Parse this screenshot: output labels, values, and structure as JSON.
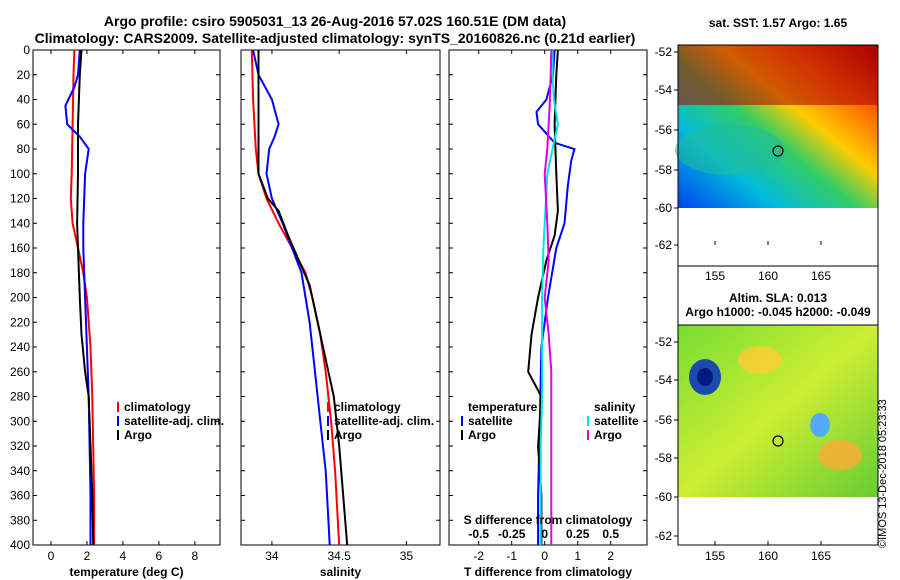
{
  "header": {
    "title_line1": "Argo profile: csiro 5905031_13 26-Aug-2016 57.02S 160.51E (DM data)",
    "title_line2": "Climatology: CARS2009. Satellite-adjusted climatology: synTS_20160826.nc (0.21d earlier)"
  },
  "colors": {
    "climatology": "#ff0000",
    "satellite": "#0000ff",
    "argo": "#000000",
    "cyan": "#00e5e5",
    "magenta": "#e000e0"
  },
  "depth_axis": {
    "ticks": [
      0,
      20,
      40,
      60,
      80,
      100,
      120,
      140,
      160,
      180,
      200,
      220,
      240,
      260,
      280,
      300,
      320,
      340,
      360,
      380,
      400
    ]
  },
  "chart_data": [
    {
      "type": "line",
      "id": "temperature",
      "xlabel": "temperature (deg C)",
      "ylabel": "",
      "xlim": [
        -1,
        9.4
      ],
      "ylim": [
        0,
        400
      ],
      "x_ticks": [
        0,
        2,
        4,
        6,
        8
      ],
      "legend": {
        "items": [
          "climatology",
          "satellite-adj. clim.",
          "Argo"
        ]
      },
      "series": [
        {
          "name": "climatology",
          "color": "red",
          "points": [
            [
              1.3,
              0
            ],
            [
              1.25,
              20
            ],
            [
              1.2,
              60
            ],
            [
              1.15,
              100
            ],
            [
              1.1,
              120
            ],
            [
              1.2,
              140
            ],
            [
              1.5,
              160
            ],
            [
              1.8,
              180
            ],
            [
              2.0,
              200
            ],
            [
              2.1,
              220
            ],
            [
              2.2,
              240
            ],
            [
              2.3,
              280
            ],
            [
              2.35,
              320
            ],
            [
              2.4,
              360
            ],
            [
              2.4,
              400
            ]
          ]
        },
        {
          "name": "satellite-adj. clim.",
          "color": "blue",
          "points": [
            [
              1.6,
              0
            ],
            [
              1.5,
              20
            ],
            [
              1.3,
              30
            ],
            [
              0.8,
              45
            ],
            [
              0.9,
              60
            ],
            [
              1.6,
              70
            ],
            [
              2.1,
              80
            ],
            [
              2.0,
              90
            ],
            [
              1.9,
              100
            ],
            [
              1.8,
              140
            ],
            [
              1.8,
              160
            ],
            [
              1.9,
              200
            ],
            [
              2.0,
              240
            ],
            [
              2.1,
              280
            ],
            [
              2.15,
              320
            ],
            [
              2.2,
              360
            ],
            [
              2.2,
              400
            ]
          ]
        },
        {
          "name": "Argo",
          "color": "black",
          "points": [
            [
              1.7,
              0
            ],
            [
              1.6,
              20
            ],
            [
              1.5,
              60
            ],
            [
              1.5,
              100
            ],
            [
              1.45,
              140
            ],
            [
              1.55,
              180
            ],
            [
              1.6,
              200
            ],
            [
              1.7,
              230
            ],
            [
              1.9,
              260
            ],
            [
              2.1,
              280
            ],
            [
              2.2,
              320
            ],
            [
              2.3,
              360
            ],
            [
              2.35,
              400
            ]
          ]
        }
      ]
    },
    {
      "type": "line",
      "id": "salinity",
      "xlabel": "salinity",
      "ylabel": "",
      "xlim": [
        33.77,
        35.25
      ],
      "x_ticks": [
        34,
        34.5,
        35
      ],
      "legend": {
        "items": [
          "climatology",
          "satellite-adj. clim.",
          "Argo"
        ]
      },
      "series": [
        {
          "name": "climatology",
          "color": "red",
          "points": [
            [
              33.85,
              0
            ],
            [
              33.86,
              40
            ],
            [
              33.88,
              80
            ],
            [
              33.9,
              100
            ],
            [
              33.96,
              120
            ],
            [
              34.05,
              140
            ],
            [
              34.15,
              160
            ],
            [
              34.25,
              180
            ],
            [
              34.3,
              200
            ],
            [
              34.36,
              230
            ],
            [
              34.4,
              260
            ],
            [
              34.44,
              300
            ],
            [
              34.47,
              340
            ],
            [
              34.49,
              380
            ],
            [
              34.5,
              400
            ]
          ]
        },
        {
          "name": "satellite-adj. clim.",
          "color": "blue",
          "points": [
            [
              33.86,
              0
            ],
            [
              33.9,
              20
            ],
            [
              34.0,
              40
            ],
            [
              34.05,
              60
            ],
            [
              34.02,
              70
            ],
            [
              33.98,
              80
            ],
            [
              33.96,
              100
            ],
            [
              34.0,
              120
            ],
            [
              34.08,
              140
            ],
            [
              34.15,
              160
            ],
            [
              34.22,
              180
            ],
            [
              34.28,
              220
            ],
            [
              34.32,
              260
            ],
            [
              34.36,
              300
            ],
            [
              34.4,
              340
            ],
            [
              34.42,
              380
            ],
            [
              34.43,
              400
            ]
          ]
        },
        {
          "name": "Argo",
          "color": "black",
          "points": [
            [
              33.9,
              0
            ],
            [
              33.9,
              40
            ],
            [
              33.9,
              80
            ],
            [
              33.9,
              100
            ],
            [
              33.97,
              120
            ],
            [
              34.05,
              130
            ],
            [
              34.12,
              150
            ],
            [
              34.2,
              170
            ],
            [
              34.28,
              190
            ],
            [
              34.32,
              210
            ],
            [
              34.38,
              240
            ],
            [
              34.42,
              260
            ],
            [
              34.46,
              280
            ],
            [
              34.5,
              320
            ],
            [
              34.53,
              360
            ],
            [
              34.56,
              400
            ]
          ]
        }
      ]
    },
    {
      "type": "line",
      "id": "differences",
      "xlabel": "T difference from climatology",
      "ylabel": "",
      "xlim": [
        -2.9,
        3.1
      ],
      "x_ticks": [
        -2,
        -1,
        0,
        1,
        2
      ],
      "top_axis": {
        "label": "S difference from climatology",
        "ticks": [
          "-0.5",
          "-0.25",
          "0",
          "0.25",
          "0.5"
        ],
        "values": [
          -0.5,
          -0.25,
          0,
          0.25,
          0.5
        ]
      },
      "legend": {
        "temperature_title": "temperature",
        "salinity_title": "salinity",
        "items": [
          "satellite",
          "Argo"
        ]
      },
      "series": [
        {
          "name": "T satellite",
          "color": "blue",
          "points": [
            [
              0.3,
              0
            ],
            [
              0.25,
              20
            ],
            [
              0.05,
              40
            ],
            [
              -0.25,
              50
            ],
            [
              -0.2,
              60
            ],
            [
              0.3,
              75
            ],
            [
              0.9,
              80
            ],
            [
              0.8,
              90
            ],
            [
              0.7,
              110
            ],
            [
              0.6,
              140
            ],
            [
              0.35,
              160
            ],
            [
              0.1,
              200
            ],
            [
              -0.1,
              240
            ],
            [
              -0.15,
              300
            ],
            [
              -0.2,
              360
            ],
            [
              -0.2,
              400
            ]
          ]
        },
        {
          "name": "T Argo",
          "color": "black",
          "points": [
            [
              0.4,
              0
            ],
            [
              0.35,
              20
            ],
            [
              0.3,
              60
            ],
            [
              0.35,
              100
            ],
            [
              0.4,
              130
            ],
            [
              0.3,
              150
            ],
            [
              0.05,
              170
            ],
            [
              -0.2,
              200
            ],
            [
              -0.4,
              230
            ],
            [
              -0.5,
              260
            ],
            [
              -0.1,
              280
            ],
            [
              -0.2,
              320
            ],
            [
              -0.1,
              360
            ],
            [
              -0.1,
              400
            ]
          ]
        },
        {
          "name": "S satellite",
          "color": "cyan",
          "points": [
            [
              0.06,
              0
            ],
            [
              0.06,
              20
            ],
            [
              0.07,
              40
            ],
            [
              0.1,
              60
            ],
            [
              0.06,
              80
            ],
            [
              0.02,
              100
            ],
            [
              0.0,
              140
            ],
            [
              -0.01,
              160
            ],
            [
              -0.02,
              200
            ],
            [
              -0.02,
              240
            ],
            [
              -0.02,
              280
            ],
            [
              -0.03,
              320
            ],
            [
              -0.03,
              360
            ],
            [
              -0.03,
              400
            ]
          ]
        },
        {
          "name": "S Argo",
          "color": "magenta",
          "points": [
            [
              0.05,
              0
            ],
            [
              0.04,
              40
            ],
            [
              0.02,
              80
            ],
            [
              0.0,
              100
            ],
            [
              0.02,
              140
            ],
            [
              0.03,
              170
            ],
            [
              0.0,
              200
            ],
            [
              0.03,
              230
            ],
            [
              0.05,
              260
            ],
            [
              0.05,
              300
            ],
            [
              0.05,
              340
            ],
            [
              0.05,
              380
            ],
            [
              0.05,
              400
            ]
          ]
        }
      ]
    }
  ],
  "maps": [
    {
      "title": "sat. SST: 1.57 Argo: 1.65",
      "lat_ticks": [
        "-52",
        "-54",
        "-56",
        "-58",
        "-60",
        "-62"
      ],
      "lon_ticks": [
        "155",
        "160",
        "165"
      ]
    },
    {
      "title_line1": "Altim. SLA: 0.013",
      "title_line2": "Argo h1000: -0.045 h2000: -0.049",
      "lat_ticks": [
        "-52",
        "-54",
        "-56",
        "-58",
        "-60",
        "-62"
      ],
      "lon_ticks": [
        "155",
        "160",
        "165"
      ]
    }
  ],
  "credit": "©IMOS 13-Dec-2018 05:23:33"
}
